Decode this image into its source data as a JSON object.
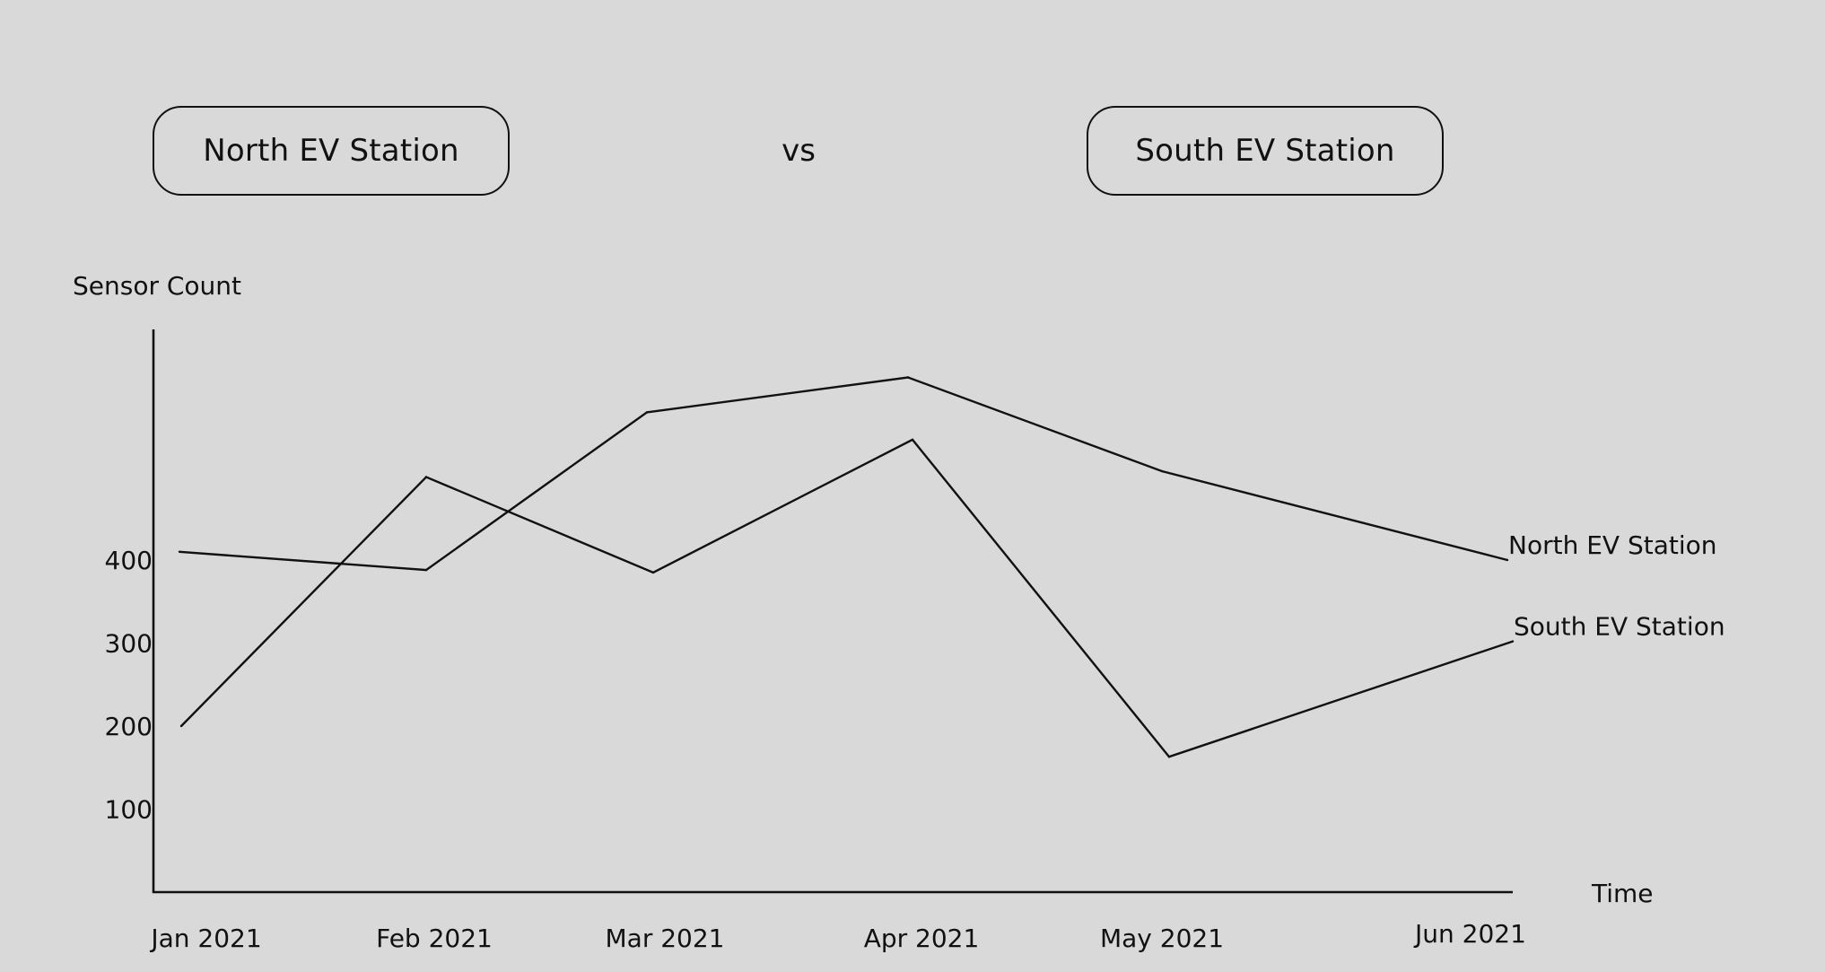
{
  "header": {
    "left_station": "North EV Station",
    "vs_label": "vs",
    "right_station": "South EV Station"
  },
  "chart_data": {
    "type": "line",
    "title": "",
    "xlabel": "Time",
    "ylabel": "Sensor Count",
    "categories": [
      "Jan 2021",
      "Feb 2021",
      "Mar 2021",
      "Apr 2021",
      "May 2021",
      "Jun 2021"
    ],
    "yticks": [
      100,
      200,
      300,
      400
    ],
    "ylim": [
      0,
      670
    ],
    "grid": false,
    "legend": "inline labels at line ends (right)",
    "series": [
      {
        "name": "North EV Station",
        "values": [
          410,
          388,
          578,
          620,
          507,
          400
        ]
      },
      {
        "name": "South EV Station",
        "values": [
          200,
          500,
          385,
          545,
          163,
          302
        ]
      }
    ]
  }
}
